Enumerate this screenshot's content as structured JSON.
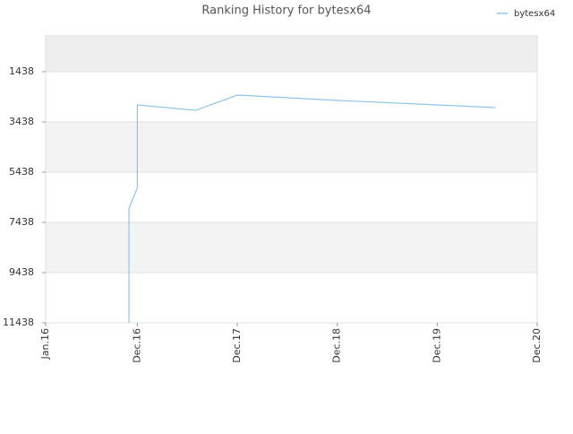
{
  "chart_data": {
    "type": "line",
    "title": "Ranking History for bytesx64",
    "x": [
      "2016-11",
      "2016-11",
      "2016-12",
      "2016-12",
      "2016-12",
      "2017-07",
      "2017-12",
      "2018-12",
      "2019-12",
      "2020-07"
    ],
    "series": [
      {
        "name": "bytesx64",
        "color": "#8ec5ec",
        "values": [
          11438,
          6867,
          6081,
          4509,
          2759,
          2974,
          2367,
          2581,
          2759,
          2867
        ]
      }
    ],
    "xlim": [
      "2016-01",
      "2020-12"
    ],
    "xticks": [
      {
        "value": "2016-01",
        "label": "Jan.16"
      },
      {
        "value": "2016-12",
        "label": "Dec.16"
      },
      {
        "value": "2017-12",
        "label": "Dec.17"
      },
      {
        "value": "2018-12",
        "label": "Dec.18"
      },
      {
        "value": "2019-12",
        "label": "Dec.19"
      },
      {
        "value": "2020-12",
        "label": "Dec.20"
      }
    ],
    "ylim": [
      11438,
      9
    ],
    "yticks": [
      1438,
      3438,
      5438,
      7438,
      9438,
      11438
    ],
    "legend": "top-right"
  }
}
